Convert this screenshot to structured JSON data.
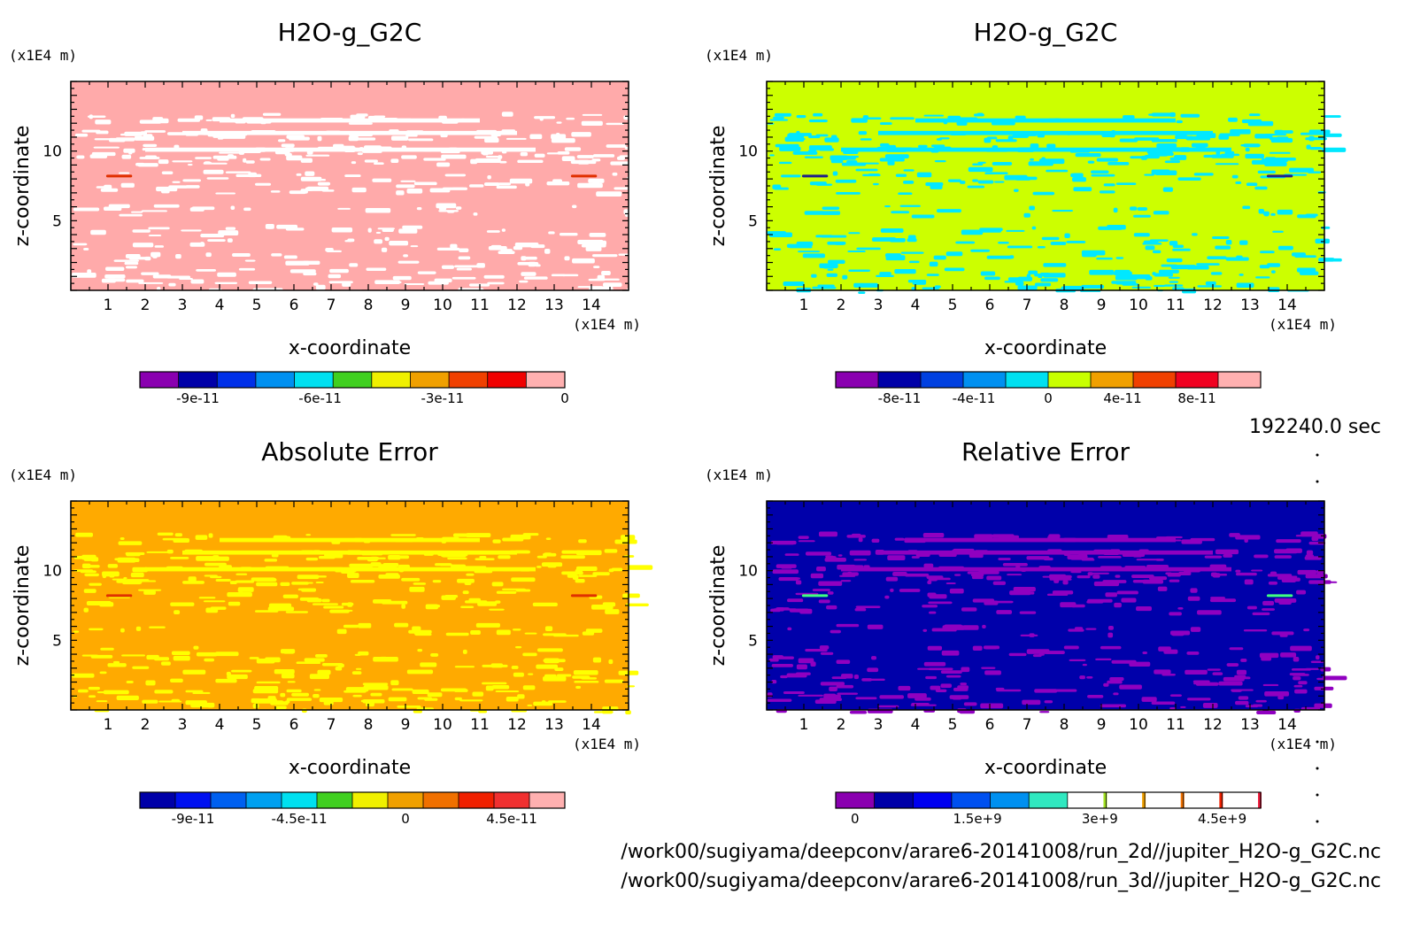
{
  "chart_data": [
    {
      "type": "heatmap",
      "title": "H2O-g_G2C",
      "xlabel": "x-coordinate",
      "ylabel": "z-coordinate",
      "x_unit": "(x1E4 m)",
      "y_unit": "(x1E4 m)",
      "xlim": [
        0,
        15
      ],
      "ylim": [
        0,
        15
      ],
      "x_ticks": [
        "1",
        "2",
        "3",
        "4",
        "5",
        "6",
        "7",
        "8",
        "9",
        "10",
        "11",
        "12",
        "13",
        "14"
      ],
      "y_ticks": [
        "5",
        "10"
      ],
      "colorbar": {
        "colors": [
          "#8a00b0",
          "#0000a8",
          "#0030e8",
          "#0090f0",
          "#00e0f0",
          "#40d020",
          "#f0f000",
          "#f0a000",
          "#f04000",
          "#f00000",
          "#ffb0b0"
        ],
        "labels": [
          "-9e-11",
          "-6e-11",
          "-3e-11",
          "0"
        ],
        "label_values": [
          -9e-11,
          -6e-11,
          -3e-11,
          0
        ]
      },
      "background_color": "#ffaaaa",
      "pattern_color": "#ffffff"
    },
    {
      "type": "heatmap",
      "title": "H2O-g_G2C",
      "xlabel": "x-coordinate",
      "ylabel": "z-coordinate",
      "x_unit": "(x1E4 m)",
      "y_unit": "(x1E4 m)",
      "xlim": [
        0,
        15
      ],
      "ylim": [
        0,
        15
      ],
      "x_ticks": [
        "1",
        "2",
        "3",
        "4",
        "5",
        "6",
        "7",
        "8",
        "9",
        "10",
        "11",
        "12",
        "13",
        "14"
      ],
      "y_ticks": [
        "5",
        "10"
      ],
      "colorbar": {
        "colors": [
          "#8a00b0",
          "#0000a8",
          "#0040e0",
          "#0090f0",
          "#00e0f0",
          "#c8ff00",
          "#f0a000",
          "#f04000",
          "#f00020",
          "#ffb0b0"
        ],
        "labels": [
          "-8e-11",
          "-4e-11",
          "0",
          "4e-11",
          "8e-11"
        ],
        "label_values": [
          -8e-11,
          -4e-11,
          0,
          4e-11,
          8e-11
        ]
      },
      "background_color": "#ccff00",
      "pattern_color": "#00e8ff"
    },
    {
      "type": "heatmap",
      "title": "Absolute Error",
      "xlabel": "x-coordinate",
      "ylabel": "z-coordinate",
      "x_unit": "(x1E4 m)",
      "y_unit": "(x1E4 m)",
      "xlim": [
        0,
        15
      ],
      "ylim": [
        0,
        15
      ],
      "x_ticks": [
        "1",
        "2",
        "3",
        "4",
        "5",
        "6",
        "7",
        "8",
        "9",
        "10",
        "11",
        "12",
        "13",
        "14"
      ],
      "y_ticks": [
        "5",
        "10"
      ],
      "colorbar": {
        "colors": [
          "#0000a8",
          "#0010f0",
          "#0060f0",
          "#00a0f0",
          "#00e0f0",
          "#40d020",
          "#f0f000",
          "#f0a000",
          "#f07000",
          "#f02000",
          "#f03030",
          "#ffb0b0"
        ],
        "labels": [
          "-9e-11",
          "-4.5e-11",
          "0",
          "4.5e-11"
        ],
        "label_values": [
          -9e-11,
          -4.5e-11,
          0,
          4.5e-11
        ]
      },
      "background_color": "#ffaa00",
      "pattern_color": "#ffff00"
    },
    {
      "type": "heatmap",
      "title": "Relative Error",
      "xlabel": "x-coordinate",
      "ylabel": "z-coordinate",
      "x_unit": "(x1E4 m)",
      "y_unit": "(x1E4 m)",
      "xlim": [
        0,
        15
      ],
      "ylim": [
        0,
        15
      ],
      "x_ticks": [
        "1",
        "2",
        "3",
        "4",
        "5",
        "6",
        "7",
        "8",
        "9",
        "10",
        "11",
        "12",
        "13",
        "14"
      ],
      "y_ticks": [
        "5",
        "10"
      ],
      "colorbar": {
        "colors": [
          "#8a00b0",
          "#0000a8",
          "#0000f0",
          "#0050f0",
          "#0090f0",
          "#30e8c0",
          "#ffffff",
          "#ffffff",
          "#ffffff",
          "#ffffff",
          "#ffffff"
        ],
        "labels": [
          "0",
          "1.5e+9",
          "3e+9",
          "4.5e+9"
        ],
        "label_values": [
          0,
          1500000000.0,
          3000000000.0,
          4500000000.0
        ]
      },
      "background_color": "#0000aa",
      "pattern_color": "#9000c0"
    }
  ],
  "time_label": "192240.0 sec",
  "file_paths": [
    "/work00/sugiyama/deepconv/arare6-20141008/run_2d//jupiter_H2O-g_G2C.nc",
    "/work00/sugiyama/deepconv/arare6-20141008/run_3d//jupiter_H2O-g_G2C.nc"
  ]
}
